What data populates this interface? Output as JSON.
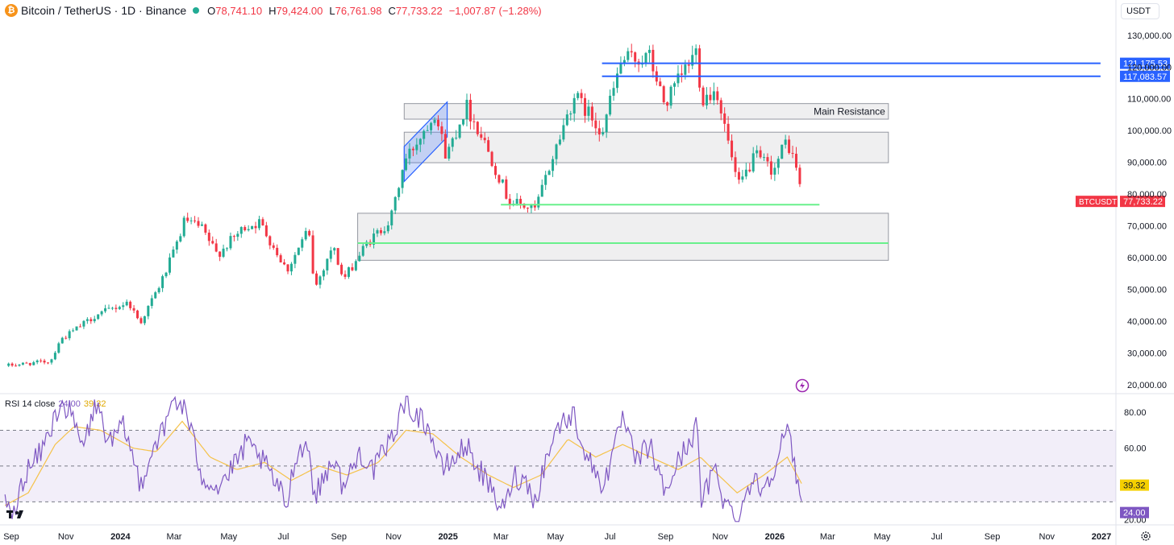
{
  "header": {
    "logo_glyph": "₿",
    "title": "Bitcoin / TetherUS · 1D · Binance",
    "open_label": "O",
    "open": "78,741.10",
    "high_label": "H",
    "high": "79,424.00",
    "low_label": "L",
    "low": "76,761.98",
    "close_label": "C",
    "close": "77,733.22",
    "change": "−1,007.87 (−1.28%)"
  },
  "currency": "USDT",
  "colors": {
    "up": "#22ab94",
    "down": "#f23645",
    "rsi": "#7e57c2",
    "rsi_ma": "#f5c24a",
    "level_blue": "#2962ff",
    "level_green": "#69f08c"
  },
  "chart_data": [
    {
      "type": "candlestick",
      "symbol": "BTCUSDT",
      "ylim": [
        17500,
        134500
      ],
      "y_ticks": [
        "20,000.00",
        "30,000.00",
        "40,000.00",
        "50,000.00",
        "60,000.00",
        "70,000.00",
        "80,000.00",
        "90,000.00",
        "100,000.00",
        "110,000.00",
        "120,000.00",
        "130,000.00"
      ],
      "y_tick_values": [
        20000,
        30000,
        40000,
        50000,
        60000,
        70000,
        80000,
        90000,
        100000,
        110000,
        120000,
        130000
      ],
      "x_ticks": [
        "Sep",
        "Nov",
        "2024",
        "Mar",
        "May",
        "Jul",
        "Sep",
        "Nov",
        "2025",
        "Mar",
        "May",
        "Jul",
        "Sep",
        "Nov",
        "2026",
        "Mar",
        "May",
        "Jul",
        "Sep",
        "Nov",
        "2027"
      ],
      "x_tick_dates": [
        "2023-09-01",
        "2023-11-01",
        "2024-01-01",
        "2024-03-01",
        "2024-05-01",
        "2024-07-01",
        "2024-09-01",
        "2024-11-01",
        "2025-01-01",
        "2025-03-01",
        "2025-05-01",
        "2025-07-01",
        "2025-09-01",
        "2025-11-01",
        "2026-01-01",
        "2026-03-01",
        "2026-05-01",
        "2026-07-01",
        "2026-09-01",
        "2026-11-01",
        "2027-01-01"
      ],
      "bold_ticks": [
        "2024",
        "2025",
        "2026",
        "2027"
      ],
      "price_path": [
        [
          "2023-08-25",
          26000
        ],
        [
          "2023-10-15",
          27500
        ],
        [
          "2023-10-25",
          34000
        ],
        [
          "2023-12-05",
          42000
        ],
        [
          "2024-01-10",
          46000
        ],
        [
          "2024-01-23",
          39500
        ],
        [
          "2024-02-15",
          52000
        ],
        [
          "2024-03-01",
          62000
        ],
        [
          "2024-03-13",
          72000
        ],
        [
          "2024-04-01",
          69000
        ],
        [
          "2024-04-18",
          61000
        ],
        [
          "2024-05-20",
          70000
        ],
        [
          "2024-06-05",
          71000
        ],
        [
          "2024-07-05",
          56000
        ],
        [
          "2024-07-29",
          69000
        ],
        [
          "2024-08-05",
          50000
        ],
        [
          "2024-08-25",
          64000
        ],
        [
          "2024-09-06",
          53000
        ],
        [
          "2024-10-01",
          64000
        ],
        [
          "2024-10-29",
          72000
        ],
        [
          "2024-11-13",
          90000
        ],
        [
          "2024-12-17",
          106000
        ],
        [
          "2024-12-30",
          92000
        ],
        [
          "2025-01-21",
          108000
        ],
        [
          "2025-02-10",
          97000
        ],
        [
          "2025-03-10",
          78000
        ],
        [
          "2025-04-08",
          75000
        ],
        [
          "2025-05-08",
          100000
        ],
        [
          "2025-05-22",
          111000
        ],
        [
          "2025-06-22",
          100000
        ],
        [
          "2025-07-14",
          122000
        ],
        [
          "2025-08-14",
          123000
        ],
        [
          "2025-08-31",
          108000
        ],
        [
          "2025-10-06",
          125500
        ],
        [
          "2025-10-11",
          110000
        ],
        [
          "2025-10-28",
          113000
        ],
        [
          "2025-11-21",
          82000
        ],
        [
          "2025-12-10",
          92000
        ],
        [
          "2025-12-31",
          87500
        ],
        [
          "2026-01-14",
          97000
        ],
        [
          "2026-01-26",
          88000
        ],
        [
          "2026-02-01",
          77733
        ]
      ],
      "lines": [
        {
          "price": 121175.53,
          "label": "121,175.53",
          "color": "#2962ff",
          "from": "2025-06-22",
          "to": "2026-12-31"
        },
        {
          "price": 117083.57,
          "label": "117,083.57",
          "color": "#2962ff",
          "from": "2025-06-22",
          "to": "2026-12-31"
        },
        {
          "price": 76700,
          "color": "#69f08c",
          "from": "2025-03-01",
          "to": "2026-02-20"
        },
        {
          "price": 64600,
          "color": "#69f08c",
          "from": "2024-09-22",
          "to": "2026-05-08"
        }
      ],
      "zones": [
        {
          "from": "2024-11-13",
          "to": "2026-05-08",
          "top": 108500,
          "bottom": 103600,
          "label": "Main Resistance"
        },
        {
          "from": "2024-11-13",
          "to": "2026-05-08",
          "top": 99500,
          "bottom": 89900
        },
        {
          "from": "2024-09-22",
          "to": "2026-05-08",
          "top": 74000,
          "bottom": 59200
        }
      ],
      "channel": {
        "from": "2024-11-13",
        "to": "2024-12-31",
        "low_start": 84000,
        "low_end": 98000,
        "high_start": 95000,
        "high_end": 109000
      },
      "current_price": {
        "symbol": "BTCUSDT",
        "value": "77,733.22",
        "color": "#f23645"
      }
    },
    {
      "type": "line",
      "title": "RSI 14 close",
      "value": "24.00",
      "ma_value": "39.32",
      "ylim": [
        18,
        90
      ],
      "y_ticks": [
        "20.00",
        "60.00",
        "80.00"
      ],
      "y_tick_values": [
        20,
        60,
        80
      ],
      "band": [
        30,
        70
      ],
      "midline": 50,
      "rsi_path": [
        [
          "2023-08-25",
          30
        ],
        [
          "2023-09-05",
          22
        ],
        [
          "2023-09-15",
          45
        ],
        [
          "2023-10-01",
          55
        ],
        [
          "2023-10-15",
          70
        ],
        [
          "2023-10-25",
          86
        ],
        [
          "2023-11-05",
          80
        ],
        [
          "2023-11-20",
          60
        ],
        [
          "2023-12-05",
          85
        ],
        [
          "2023-12-20",
          62
        ],
        [
          "2024-01-05",
          72
        ],
        [
          "2024-01-23",
          40
        ],
        [
          "2024-02-10",
          65
        ],
        [
          "2024-02-20",
          70
        ],
        [
          "2024-02-28",
          88
        ],
        [
          "2024-03-13",
          82
        ],
        [
          "2024-04-01",
          45
        ],
        [
          "2024-04-18",
          38
        ],
        [
          "2024-05-05",
          48
        ],
        [
          "2024-05-20",
          62
        ],
        [
          "2024-06-05",
          55
        ],
        [
          "2024-06-25",
          38
        ],
        [
          "2024-07-05",
          28
        ],
        [
          "2024-07-15",
          58
        ],
        [
          "2024-07-29",
          62
        ],
        [
          "2024-08-05",
          32
        ],
        [
          "2024-08-25",
          55
        ],
        [
          "2024-09-06",
          38
        ],
        [
          "2024-09-25",
          58
        ],
        [
          "2024-10-10",
          48
        ],
        [
          "2024-10-29",
          64
        ],
        [
          "2024-11-13",
          86
        ],
        [
          "2024-11-25",
          80
        ],
        [
          "2024-12-10",
          72
        ],
        [
          "2024-12-25",
          48
        ],
        [
          "2025-01-10",
          55
        ],
        [
          "2025-01-21",
          62
        ],
        [
          "2025-02-05",
          48
        ],
        [
          "2025-02-25",
          30
        ],
        [
          "2025-03-05",
          25
        ],
        [
          "2025-03-15",
          45
        ],
        [
          "2025-04-01",
          40
        ],
        [
          "2025-04-08",
          30
        ],
        [
          "2025-04-25",
          62
        ],
        [
          "2025-05-08",
          75
        ],
        [
          "2025-05-22",
          78
        ],
        [
          "2025-06-05",
          55
        ],
        [
          "2025-06-22",
          40
        ],
        [
          "2025-07-05",
          55
        ],
        [
          "2025-07-14",
          78
        ],
        [
          "2025-07-30",
          52
        ],
        [
          "2025-08-14",
          62
        ],
        [
          "2025-08-31",
          35
        ],
        [
          "2025-09-15",
          52
        ],
        [
          "2025-10-06",
          72
        ],
        [
          "2025-10-11",
          30
        ],
        [
          "2025-10-28",
          50
        ],
        [
          "2025-11-05",
          30
        ],
        [
          "2025-11-21",
          21
        ],
        [
          "2025-12-05",
          42
        ],
        [
          "2025-12-20",
          38
        ],
        [
          "2025-12-31",
          50
        ],
        [
          "2026-01-14",
          70
        ],
        [
          "2026-01-22",
          55
        ],
        [
          "2026-01-28",
          35
        ],
        [
          "2026-02-01",
          24
        ]
      ],
      "ma_path": [
        [
          "2023-08-25",
          28
        ],
        [
          "2023-09-20",
          35
        ],
        [
          "2023-10-20",
          62
        ],
        [
          "2023-11-10",
          72
        ],
        [
          "2023-12-10",
          70
        ],
        [
          "2024-01-15",
          60
        ],
        [
          "2024-02-10",
          58
        ],
        [
          "2024-03-10",
          75
        ],
        [
          "2024-04-10",
          55
        ],
        [
          "2024-05-10",
          48
        ],
        [
          "2024-06-10",
          52
        ],
        [
          "2024-07-10",
          42
        ],
        [
          "2024-08-10",
          50
        ],
        [
          "2024-09-10",
          45
        ],
        [
          "2024-10-15",
          52
        ],
        [
          "2024-11-15",
          70
        ],
        [
          "2024-12-15",
          68
        ],
        [
          "2025-01-15",
          55
        ],
        [
          "2025-02-15",
          45
        ],
        [
          "2025-03-15",
          38
        ],
        [
          "2025-04-15",
          45
        ],
        [
          "2025-05-15",
          65
        ],
        [
          "2025-06-15",
          55
        ],
        [
          "2025-07-15",
          62
        ],
        [
          "2025-08-15",
          55
        ],
        [
          "2025-09-15",
          48
        ],
        [
          "2025-10-10",
          55
        ],
        [
          "2025-10-30",
          45
        ],
        [
          "2025-11-20",
          35
        ],
        [
          "2025-12-20",
          45
        ],
        [
          "2026-01-15",
          55
        ],
        [
          "2026-02-01",
          39.32
        ]
      ]
    }
  ]
}
